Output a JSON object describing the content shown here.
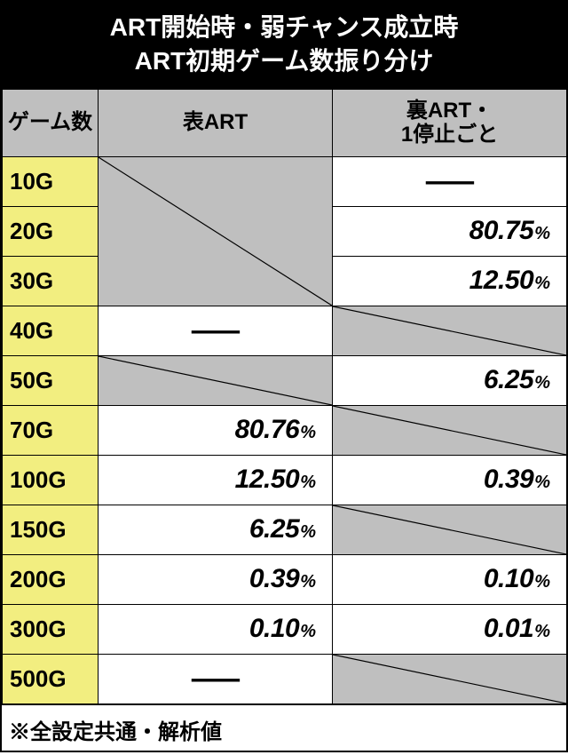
{
  "title_l1": "ART開始時・弱チャンス成立時",
  "title_l2": "ART初期ゲーム数振り分け",
  "headers": {
    "games": "ゲーム数",
    "colA": "表ART",
    "colB_l1": "裏ART・",
    "colB_l2": "1停止ごと"
  },
  "dash": "—",
  "footnote": "※全設定共通・解析値",
  "rows": [
    {
      "g": "10G",
      "a": {
        "type": "merge-slash",
        "span": 3
      },
      "b": {
        "type": "dash"
      }
    },
    {
      "g": "20G",
      "a": {
        "type": "merged"
      },
      "b": {
        "type": "val",
        "v": "80.75"
      }
    },
    {
      "g": "30G",
      "a": {
        "type": "merged"
      },
      "b": {
        "type": "val",
        "v": "12.50"
      }
    },
    {
      "g": "40G",
      "a": {
        "type": "dash"
      },
      "b": {
        "type": "slash"
      }
    },
    {
      "g": "50G",
      "a": {
        "type": "slash"
      },
      "b": {
        "type": "val",
        "v": "6.25"
      }
    },
    {
      "g": "70G",
      "a": {
        "type": "val",
        "v": "80.76"
      },
      "b": {
        "type": "slash"
      }
    },
    {
      "g": "100G",
      "a": {
        "type": "val",
        "v": "12.50"
      },
      "b": {
        "type": "val",
        "v": "0.39"
      }
    },
    {
      "g": "150G",
      "a": {
        "type": "val",
        "v": "6.25"
      },
      "b": {
        "type": "slash"
      }
    },
    {
      "g": "200G",
      "a": {
        "type": "val",
        "v": "0.39"
      },
      "b": {
        "type": "val",
        "v": "0.10"
      }
    },
    {
      "g": "300G",
      "a": {
        "type": "val",
        "v": "0.10"
      },
      "b": {
        "type": "val",
        "v": "0.01"
      }
    },
    {
      "g": "500G",
      "a": {
        "type": "dash"
      },
      "b": {
        "type": "slash"
      }
    }
  ]
}
